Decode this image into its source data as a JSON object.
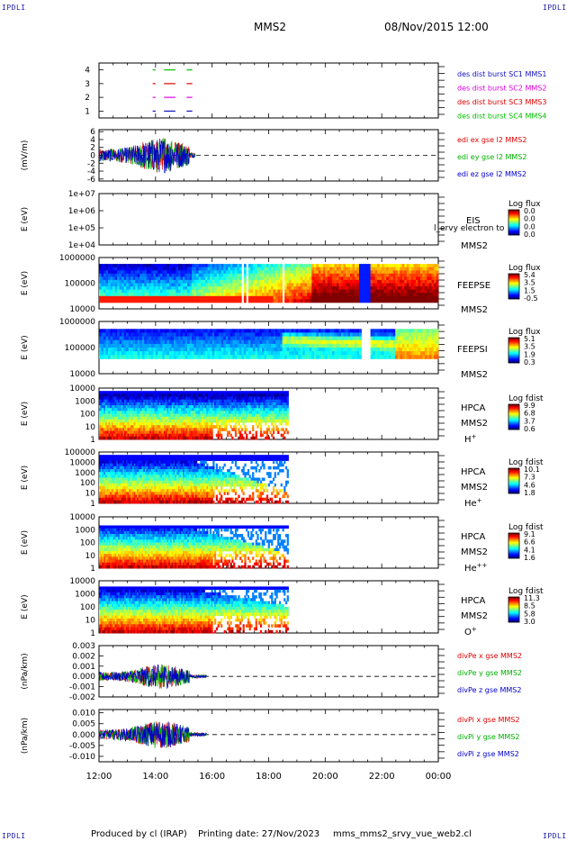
{
  "corner_label": "IPDLI",
  "header": {
    "spacecraft": "MMS2",
    "date_time": "08/Nov/2015 12:00"
  },
  "footer": {
    "produced_by": "Produced by cl (IRAP)",
    "printing_date": "Printing date: 27/Nov/2023",
    "filename": "mms_mms2_srvy_vue_web2.cl"
  },
  "colors": {
    "mms1": "#1010c0",
    "mms2": "#e000e0",
    "mms3": "#e00000",
    "mms4": "#00c000",
    "red": "#dd0000",
    "green": "#00b000",
    "blue": "#0000cc"
  },
  "chart_data": [
    {
      "id": "burst",
      "type": "line",
      "title": "",
      "ylabel": "",
      "yticks": [
        "1",
        "2",
        "3",
        "4"
      ],
      "ylim": [
        0.5,
        4.5
      ],
      "legend": [
        "des dist burst SC1 MMS1",
        "des dist burst SC2 MMS2",
        "des dist burst SC3 MMS3",
        "des dist burst SC4 MMS4"
      ],
      "series": [
        {
          "name": "des dist burst SC1 MMS1",
          "y": 1,
          "segments": [
            [
              13.9,
              14.0
            ],
            [
              14.3,
              14.7
            ],
            [
              15.1,
              15.3
            ]
          ]
        },
        {
          "name": "des dist burst SC2 MMS2",
          "y": 2,
          "segments": [
            [
              13.9,
              14.0
            ],
            [
              14.3,
              14.7
            ],
            [
              15.1,
              15.3
            ]
          ]
        },
        {
          "name": "des dist burst SC3 MMS3",
          "y": 3,
          "segments": [
            [
              13.9,
              14.0
            ],
            [
              14.3,
              14.7
            ],
            [
              15.1,
              15.3
            ]
          ]
        },
        {
          "name": "des dist burst SC4 MMS4",
          "y": 4,
          "segments": [
            [
              13.9,
              14.0
            ],
            [
              14.3,
              14.7
            ],
            [
              15.1,
              15.3
            ]
          ]
        }
      ]
    },
    {
      "id": "edi",
      "type": "line",
      "ylabel": "(mV/m)",
      "yticks": [
        "-6",
        "-4",
        "-2",
        "0",
        "2",
        "4",
        "6"
      ],
      "ylim": [
        -6.5,
        6.5
      ],
      "legend": [
        "edi ex gse l2 MMS2",
        "edi ey gse l2 MMS2",
        "edi ez gse l2 MMS2"
      ],
      "data_range": [
        12.0,
        15.4
      ],
      "dashed_zero": true
    },
    {
      "id": "eis",
      "type": "heatmap",
      "ylabel": "E (eV)",
      "yticks": [
        "1e+04",
        "1e+05",
        "1e+06",
        "1e+07"
      ],
      "instrument": "EIS",
      "spacecraft": "MMS2",
      "cb_title": "Log flux",
      "cb_ticks": [
        "0.0",
        "0.0",
        "0.0",
        "0.0"
      ],
      "overlay_text": "l_ervy electron to"
    },
    {
      "id": "feeps_e",
      "type": "heatmap",
      "ylabel": "E (eV)",
      "yticks": [
        "10000",
        "100000",
        "1000000"
      ],
      "instrument": "FEEPSE",
      "spacecraft": "MMS2",
      "cb_title": "Log flux",
      "cb_ticks": [
        "5.4",
        "3.5",
        "1.5",
        "-0.5"
      ]
    },
    {
      "id": "feeps_i",
      "type": "heatmap",
      "ylabel": "E (eV)",
      "yticks": [
        "10000",
        "100000",
        "1000000"
      ],
      "instrument": "FEEPSI",
      "spacecraft": "MMS2",
      "cb_title": "Log flux",
      "cb_ticks": [
        "5.1",
        "3.5",
        "1.9",
        "0.3"
      ]
    },
    {
      "id": "hpca_h",
      "type": "heatmap",
      "ylabel": "E (eV)",
      "yticks": [
        "1",
        "10",
        "100",
        "1000",
        "10000"
      ],
      "instrument": "HPCA",
      "spacecraft": "MMS2",
      "species": "H",
      "charge": "+",
      "cb_title": "Log fdist",
      "cb_ticks": [
        "9.9",
        "6.8",
        "3.7",
        "0.6"
      ],
      "data_range": [
        12.0,
        18.7
      ]
    },
    {
      "id": "hpca_he",
      "type": "heatmap",
      "ylabel": "E (eV)",
      "yticks": [
        "1",
        "10",
        "100",
        "1000",
        "10000",
        "100000"
      ],
      "instrument": "HPCA",
      "spacecraft": "MMS2",
      "species": "He",
      "charge": "+",
      "cb_title": "Log fdist",
      "cb_ticks": [
        "10.1",
        "7.3",
        "4.6",
        "1.8"
      ],
      "data_range": [
        12.0,
        18.7
      ]
    },
    {
      "id": "hpca_he2",
      "type": "heatmap",
      "ylabel": "E (eV)",
      "yticks": [
        "1",
        "10",
        "100",
        "1000",
        "10000"
      ],
      "instrument": "HPCA",
      "spacecraft": "MMS2",
      "species": "He",
      "charge": "++",
      "cb_title": "Log fdist",
      "cb_ticks": [
        "9.1",
        "6.6",
        "4.1",
        "1.6"
      ],
      "data_range": [
        12.0,
        18.7
      ]
    },
    {
      "id": "hpca_o",
      "type": "heatmap",
      "ylabel": "E (eV)",
      "yticks": [
        "1",
        "10",
        "100",
        "1000",
        "10000"
      ],
      "instrument": "HPCA",
      "spacecraft": "MMS2",
      "species": "O",
      "charge": "+",
      "cb_title": "Log fdist",
      "cb_ticks": [
        "11.3",
        "8.5",
        "5.8",
        "3.0"
      ],
      "data_range": [
        12.0,
        18.7
      ]
    },
    {
      "id": "divpe",
      "type": "line",
      "ylabel": "(nPa/km)",
      "yticks": [
        "-0.002",
        "-0.001",
        "0.000",
        "0.001",
        "0.002",
        "0.003"
      ],
      "ylim": [
        -0.002,
        0.003
      ],
      "legend": [
        "divPe x gse MMS2",
        "divPe y gse MMS2",
        "divPe z gse MMS2"
      ],
      "data_range": [
        12.0,
        15.8
      ],
      "dashed_zero": true
    },
    {
      "id": "divpi",
      "type": "line",
      "ylabel": "(nPa/km)",
      "yticks": [
        "-0.010",
        "-0.005",
        "0.000",
        "0.005",
        "0.010"
      ],
      "ylim": [
        -0.0125,
        0.0115
      ],
      "legend": [
        "divPi x gse MMS2",
        "divPi y gse MMS2",
        "divPi z gse MMS2"
      ],
      "data_range": [
        12.0,
        15.8
      ],
      "dashed_zero": true
    }
  ],
  "time_axis": {
    "ticks": [
      "12:00",
      "14:00",
      "16:00",
      "18:00",
      "20:00",
      "22:00",
      "00:00"
    ],
    "range_hours": [
      12,
      24
    ]
  }
}
